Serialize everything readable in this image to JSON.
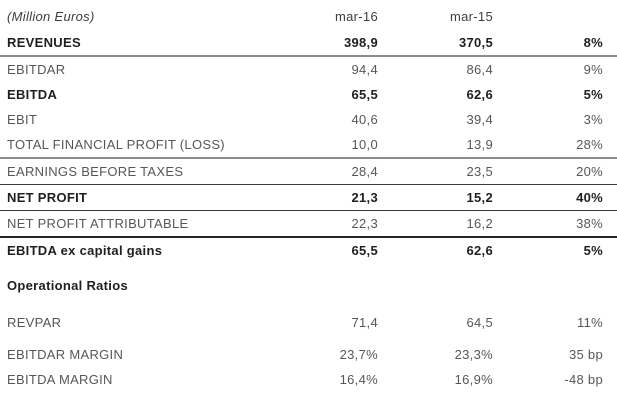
{
  "document": {
    "unit_label": "(Million Euros)",
    "columns": {
      "period_current": "mar-16",
      "period_prior": "mar-15",
      "change": ""
    },
    "rows": [
      {
        "label": "REVENUES",
        "mar16": "398,9",
        "mar15": "370,5",
        "change": "8%"
      },
      {
        "label": "EBITDAR",
        "mar16": "94,4",
        "mar15": "86,4",
        "change": "9%"
      },
      {
        "label": "EBITDA",
        "mar16": "65,5",
        "mar15": "62,6",
        "change": "5%"
      },
      {
        "label": "EBIT",
        "mar16": "40,6",
        "mar15": "39,4",
        "change": "3%"
      },
      {
        "label": "TOTAL FINANCIAL PROFIT (LOSS)",
        "mar16": "10,0",
        "mar15": "13,9",
        "change": "28%"
      },
      {
        "label": "EARNINGS BEFORE TAXES",
        "mar16": "28,4",
        "mar15": "23,5",
        "change": "20%"
      },
      {
        "label": "NET PROFIT",
        "mar16": "21,3",
        "mar15": "15,2",
        "change": "40%"
      },
      {
        "label": "NET PROFIT ATTRIBUTABLE",
        "mar16": "22,3",
        "mar15": "16,2",
        "change": "38%"
      },
      {
        "label": "EBITDA ex capital gains",
        "mar16": "65,5",
        "mar15": "62,6",
        "change": "5%"
      }
    ],
    "section_heading": "Operational Ratios",
    "ratio_rows": [
      {
        "label": "REVPAR",
        "mar16": "71,4",
        "mar15": "64,5",
        "change": "11%"
      },
      {
        "label": "EBITDAR MARGIN",
        "mar16": "23,7%",
        "mar15": "23,3%",
        "change": "35 bp"
      },
      {
        "label": "EBITDA MARGIN",
        "mar16": "16,4%",
        "mar15": "16,9%",
        "change": "-48 bp"
      }
    ],
    "colors": {
      "regular_text": "#575757",
      "bold_text": "#1f1f1f",
      "rule_gray": "#8c8c8c",
      "rule_dark": "#262626",
      "background": "#ffffff"
    }
  }
}
